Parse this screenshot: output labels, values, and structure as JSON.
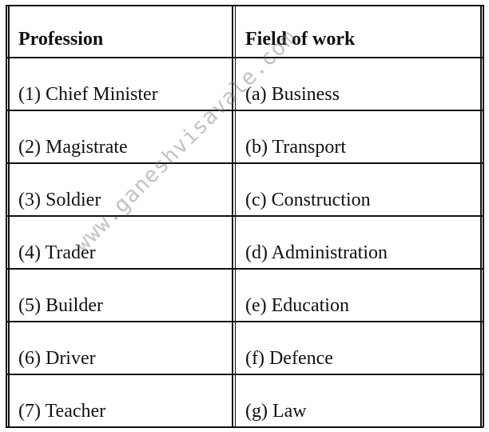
{
  "table": {
    "headers": [
      "Profession",
      "Field of work"
    ],
    "rows": [
      [
        "(1) Chief Minister",
        "(a) Business"
      ],
      [
        "(2) Magistrate",
        "(b) Transport"
      ],
      [
        "(3) Soldier",
        "(c) Construction"
      ],
      [
        "(4) Trader",
        "(d) Administration"
      ],
      [
        "(5) Builder",
        "(e) Education"
      ],
      [
        "(6) Driver",
        "(f) Defence"
      ],
      [
        "(7) Teacher",
        "(g) Law"
      ]
    ]
  },
  "watermark": "www.ganeshvisavale.com"
}
